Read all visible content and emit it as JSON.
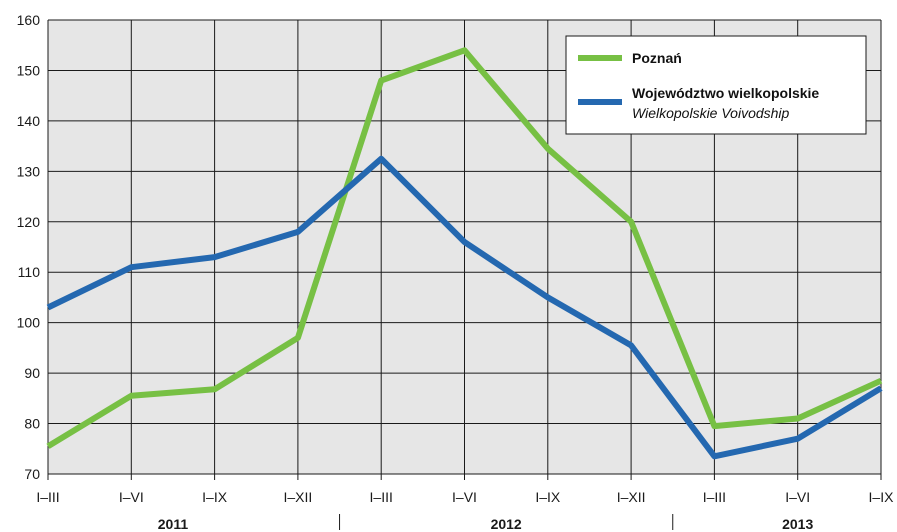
{
  "chart_data": {
    "type": "line",
    "categories": [
      "I–III",
      "I–VI",
      "I–IX",
      "I–XII",
      "I–III",
      "I–VI",
      "I–IX",
      "I–XII",
      "I–III",
      "I–VI",
      "I–IX"
    ],
    "years": [
      {
        "label": "2011",
        "start": 0,
        "end": 3
      },
      {
        "label": "2012",
        "start": 4,
        "end": 7
      },
      {
        "label": "2013",
        "start": 8,
        "end": 10
      }
    ],
    "series": [
      {
        "name": "Poznań",
        "name_secondary": "",
        "color": "#77c044",
        "values": [
          75.5,
          85.5,
          86.8,
          97,
          148,
          154,
          134.5,
          120,
          79.5,
          81,
          88.5
        ]
      },
      {
        "name": "Województwo wielkopolskie",
        "name_secondary": "Wielkopolskie Voivodship",
        "color": "#2468b0",
        "values": [
          103,
          111,
          113,
          118,
          132.5,
          116,
          105,
          95.5,
          73.5,
          77,
          87
        ]
      }
    ],
    "yticks": [
      70,
      80,
      90,
      100,
      110,
      120,
      130,
      140,
      150,
      160
    ],
    "ylim": [
      70,
      160
    ],
    "grid": true,
    "plot_background": "#e6e6e6",
    "legend_position": "top-right"
  }
}
